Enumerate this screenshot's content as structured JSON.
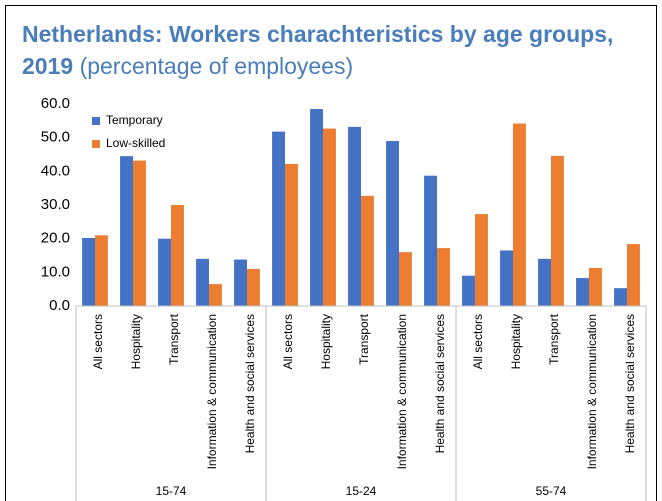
{
  "chart_data": {
    "type": "bar",
    "title": "Netherlands: Workers charachteristics by age groups, 2019",
    "subtitle": "(percentage of employees)",
    "categories": [
      "All sectors",
      "Hospitality",
      "Transport",
      "Information & communication",
      "Health and social services",
      "All sectors",
      "Hospitality",
      "Transport",
      "Information & communication",
      "Health and social services",
      "All sectors",
      "Hospitality",
      "Transport",
      "Information & communication",
      "Health and social services"
    ],
    "category_groups": [
      "15-74",
      "15-24",
      "55-74"
    ],
    "series": [
      {
        "name": "Temporary",
        "color": "#4472c4",
        "values": [
          20.2,
          44.5,
          20.0,
          14.0,
          13.8,
          51.8,
          58.5,
          53.2,
          49.0,
          38.7,
          9.0,
          16.5,
          14.0,
          8.3,
          5.3
        ]
      },
      {
        "name": "Low-skilled",
        "color": "#ed7d31",
        "values": [
          21.0,
          43.2,
          30.0,
          6.5,
          11.0,
          42.2,
          52.7,
          32.7,
          16.0,
          17.2,
          27.3,
          54.2,
          44.6,
          11.3,
          18.4
        ]
      }
    ],
    "ylim": [
      0,
      60
    ],
    "yticks": [
      {
        "value": 0,
        "label": "0.0"
      },
      {
        "value": 10,
        "label": "10.0"
      },
      {
        "value": 20,
        "label": "20.0"
      },
      {
        "value": 30,
        "label": "30.0"
      },
      {
        "value": 40,
        "label": "40.0"
      },
      {
        "value": 50,
        "label": "50.0"
      },
      {
        "value": 60,
        "label": "60.0"
      }
    ],
    "grid": false,
    "legend": "top-left"
  }
}
